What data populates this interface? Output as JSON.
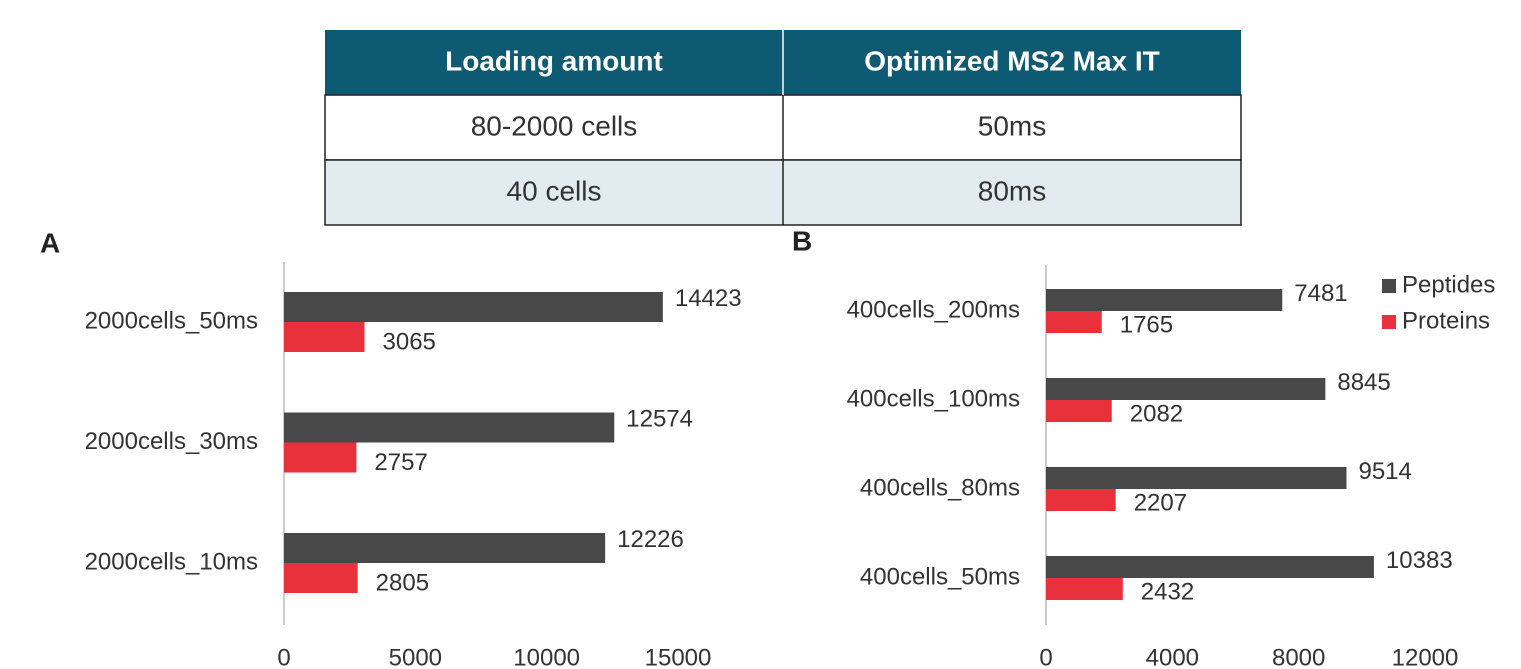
{
  "table": {
    "header": [
      "Loading amount",
      "Optimized MS2 Max IT"
    ],
    "rows": [
      [
        "80-2000 cells",
        "50ms"
      ],
      [
        "40 cells",
        "80ms"
      ]
    ]
  },
  "chart_data": [
    {
      "type": "bar",
      "orientation": "horizontal",
      "title": "A",
      "categories": [
        "2000cells_50ms",
        "2000cells_30ms",
        "2000cells_10ms"
      ],
      "series": [
        {
          "color": "#484848",
          "values": [
            14423,
            12574,
            12226
          ]
        },
        {
          "color": "#e8313a",
          "values": [
            3065,
            2757,
            2805
          ]
        }
      ],
      "xlim": [
        0,
        15000
      ],
      "xticks": [
        0,
        5000,
        10000,
        15000
      ]
    },
    {
      "type": "bar",
      "orientation": "horizontal",
      "title": "B",
      "categories": [
        "400cells_200ms",
        "400cells_100ms",
        "400cells_80ms",
        "400cells_50ms"
      ],
      "series": [
        {
          "name": "Peptides",
          "color": "#484848",
          "values": [
            7481,
            8845,
            9514,
            10383
          ]
        },
        {
          "name": "Proteins",
          "color": "#e8313a",
          "values": [
            1765,
            2082,
            2207,
            2432
          ]
        }
      ],
      "xlim": [
        0,
        12000
      ],
      "xticks": [
        0,
        4000,
        8000,
        12000
      ],
      "legend": "upper right"
    }
  ]
}
